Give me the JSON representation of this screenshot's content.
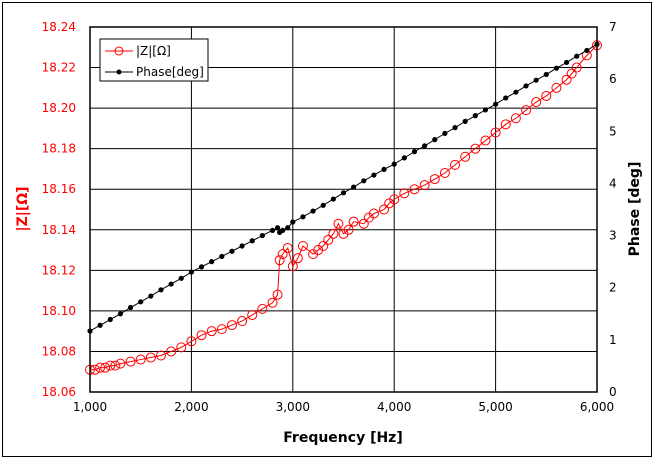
{
  "chart_data": {
    "type": "line",
    "xlabel": "Frequency [Hz]",
    "ylabel": "|Z|[Ω]",
    "y2label": "Phase [deg]",
    "xlim": [
      1000,
      6000
    ],
    "ylim": [
      18.06,
      18.24
    ],
    "y2lim": [
      0,
      7
    ],
    "x_ticks": [
      "1,000",
      "2,000",
      "3,000",
      "4,000",
      "5,000",
      "6,000"
    ],
    "y_ticks": [
      "18.06",
      "18.08",
      "18.10",
      "18.12",
      "18.14",
      "18.16",
      "18.18",
      "18.20",
      "18.22",
      "18.24"
    ],
    "y2_ticks": [
      "0",
      "1",
      "2",
      "3",
      "4",
      "5",
      "6",
      "7"
    ],
    "grid": true,
    "legend": "top-left",
    "colors": {
      "z": "#ff0000",
      "phase": "#000000",
      "y_axis_text": "#ff0000"
    },
    "series": [
      {
        "name": "|Z|[Ω]",
        "axis": "left",
        "marker": "open-circle",
        "x": [
          1000,
          1050,
          1100,
          1150,
          1200,
          1250,
          1300,
          1400,
          1500,
          1600,
          1700,
          1800,
          1900,
          2000,
          2100,
          2200,
          2300,
          2400,
          2500,
          2600,
          2700,
          2800,
          2850,
          2870,
          2900,
          2950,
          3000,
          3050,
          3100,
          3200,
          3250,
          3300,
          3350,
          3400,
          3450,
          3500,
          3550,
          3600,
          3700,
          3750,
          3800,
          3900,
          3950,
          4000,
          4100,
          4200,
          4300,
          4400,
          4500,
          4600,
          4700,
          4800,
          4900,
          5000,
          5100,
          5200,
          5300,
          5400,
          5500,
          5600,
          5700,
          5750,
          5800,
          5900,
          6000
        ],
        "y": [
          18.071,
          18.071,
          18.072,
          18.072,
          18.073,
          18.073,
          18.074,
          18.075,
          18.076,
          18.077,
          18.078,
          18.08,
          18.082,
          18.085,
          18.088,
          18.09,
          18.091,
          18.093,
          18.095,
          18.098,
          18.101,
          18.104,
          18.108,
          18.125,
          18.128,
          18.131,
          18.122,
          18.126,
          18.132,
          18.128,
          18.13,
          18.132,
          18.135,
          18.138,
          18.143,
          18.138,
          18.14,
          18.144,
          18.143,
          18.146,
          18.148,
          18.15,
          18.153,
          18.155,
          18.158,
          18.16,
          18.162,
          18.165,
          18.168,
          18.172,
          18.176,
          18.18,
          18.184,
          18.188,
          18.192,
          18.195,
          18.199,
          18.203,
          18.206,
          18.21,
          18.214,
          18.217,
          18.22,
          18.226,
          18.231
        ]
      },
      {
        "name": "Phase[deg]",
        "axis": "right",
        "marker": "filled-circle",
        "x": [
          1000,
          1100,
          1200,
          1300,
          1400,
          1500,
          1600,
          1700,
          1800,
          1900,
          2000,
          2100,
          2200,
          2300,
          2400,
          2500,
          2600,
          2700,
          2800,
          2850,
          2870,
          2900,
          2950,
          3000,
          3100,
          3200,
          3300,
          3400,
          3500,
          3600,
          3700,
          3800,
          3900,
          4000,
          4100,
          4200,
          4300,
          4400,
          4500,
          4600,
          4700,
          4800,
          4900,
          5000,
          5100,
          5200,
          5300,
          5400,
          5500,
          5600,
          5700,
          5800,
          5900,
          6000
        ],
        "y": [
          1.17,
          1.28,
          1.39,
          1.5,
          1.62,
          1.73,
          1.84,
          1.96,
          2.07,
          2.18,
          2.3,
          2.4,
          2.5,
          2.6,
          2.7,
          2.8,
          2.9,
          3.0,
          3.1,
          3.15,
          3.06,
          3.1,
          3.15,
          3.26,
          3.36,
          3.47,
          3.58,
          3.7,
          3.82,
          3.93,
          4.05,
          4.16,
          4.27,
          4.37,
          4.49,
          4.61,
          4.72,
          4.84,
          4.96,
          5.07,
          5.19,
          5.3,
          5.41,
          5.52,
          5.64,
          5.75,
          5.87,
          5.98,
          6.09,
          6.21,
          6.32,
          6.44,
          6.55,
          6.67
        ]
      }
    ]
  }
}
